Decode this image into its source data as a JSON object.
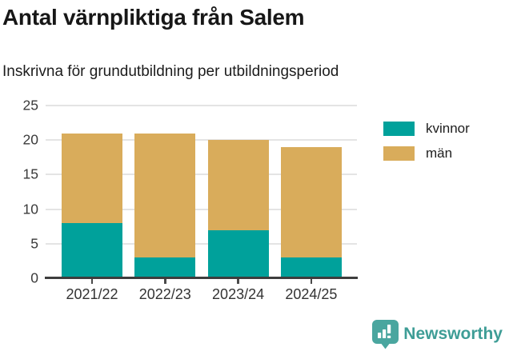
{
  "title": "Antal värnpliktiga från Salem",
  "subtitle": "Inskrivna för grundutbildning per utbildningsperiod",
  "chart_data": {
    "type": "bar",
    "stacked": true,
    "title": "Antal värnpliktiga från Salem",
    "subtitle": "Inskrivna för grundutbildning per utbildningsperiod",
    "categories": [
      "2021/22",
      "2022/23",
      "2023/24",
      "2024/25"
    ],
    "series": [
      {
        "name": "kvinnor",
        "color": "#00a19b",
        "values": [
          8,
          3,
          7,
          3
        ]
      },
      {
        "name": "män",
        "color": "#d9ac5b",
        "values": [
          13,
          18,
          13,
          16
        ]
      }
    ],
    "xlabel": "",
    "ylabel": "",
    "ylim": [
      0,
      25
    ],
    "yticks": [
      0,
      5,
      10,
      15,
      20,
      25
    ],
    "grid": "horizontal",
    "legend_position": "right-top"
  },
  "colors": {
    "kvinnor": "#00a19b",
    "man": "#d9ac5b",
    "gridline": "#e4e4e4",
    "axis": "#3d3d3d",
    "brand": "#3e9d96",
    "logo_fill": "#4aa69f"
  },
  "footer": {
    "brand": "Newsworthy",
    "logo_icon": "bar-chart-speech-bubble-icon"
  }
}
